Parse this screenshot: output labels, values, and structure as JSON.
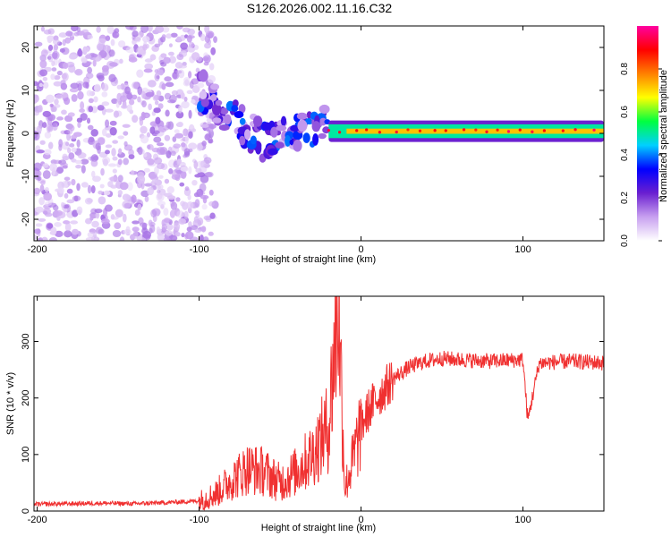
{
  "title": "S126.2026.002.11.16.C32",
  "chart_data": [
    {
      "type": "heatmap",
      "title": "S126.2026.002.11.16.C32",
      "xlabel": "Height of straight line (km)",
      "ylabel": "Frequency (Hz)",
      "xlim": [
        -202,
        150
      ],
      "ylim": [
        -25,
        25
      ],
      "xticks": [
        -200,
        -100,
        0,
        100
      ],
      "yticks": [
        -20,
        -10,
        0,
        10,
        20
      ],
      "colorbar": {
        "label": "Normalized spectral amplitude",
        "range": [
          0,
          1
        ],
        "ticks": [
          0.0,
          0.2,
          0.4,
          0.6,
          0.8
        ],
        "colors": [
          "#ffffff",
          "#c8a0f0",
          "#6a1fd0",
          "#0000ff",
          "#00d0ff",
          "#00ff40",
          "#ffff00",
          "#ff8000",
          "#ff0000",
          "#ff00a0"
        ]
      },
      "features": [
        {
          "name": "broadband noise region",
          "x_range": [
            -202,
            -100
          ],
          "freq_range": [
            -25,
            25
          ],
          "amplitude": 0.1
        },
        {
          "name": "descending signal",
          "points": [
            [
              -100,
              10
            ],
            [
              -90,
              7
            ],
            [
              -80,
              4
            ],
            [
              -70,
              1
            ],
            [
              -60,
              -2
            ],
            [
              -50,
              -1
            ],
            [
              -40,
              0
            ],
            [
              -30,
              1
            ],
            [
              -20,
              2
            ]
          ],
          "amplitude": 0.25
        },
        {
          "name": "stable tone",
          "x_range": [
            -20,
            150
          ],
          "frequency": 0.5,
          "amplitude": 0.6
        }
      ]
    },
    {
      "type": "line",
      "xlabel": "Height of straight line (km)",
      "ylabel": "SNR (10 * v/v)",
      "xlim": [
        -202,
        150
      ],
      "ylim": [
        0,
        380
      ],
      "xticks": [
        -200,
        -100,
        0,
        100
      ],
      "yticks": [
        0,
        100,
        200,
        300
      ],
      "color": "#f03030",
      "series": [
        {
          "name": "SNR",
          "x": [
            -202,
            -180,
            -160,
            -140,
            -120,
            -100,
            -90,
            -80,
            -70,
            -60,
            -50,
            -40,
            -30,
            -20,
            -14,
            -10,
            -5,
            0,
            5,
            10,
            20,
            30,
            40,
            50,
            60,
            80,
            100,
            103,
            110,
            130,
            150
          ],
          "y": [
            12,
            13,
            14,
            13,
            15,
            18,
            30,
            55,
            75,
            70,
            50,
            70,
            100,
            150,
            380,
            40,
            90,
            150,
            180,
            200,
            235,
            255,
            265,
            270,
            268,
            265,
            268,
            160,
            262,
            265,
            262
          ]
        }
      ]
    }
  ]
}
